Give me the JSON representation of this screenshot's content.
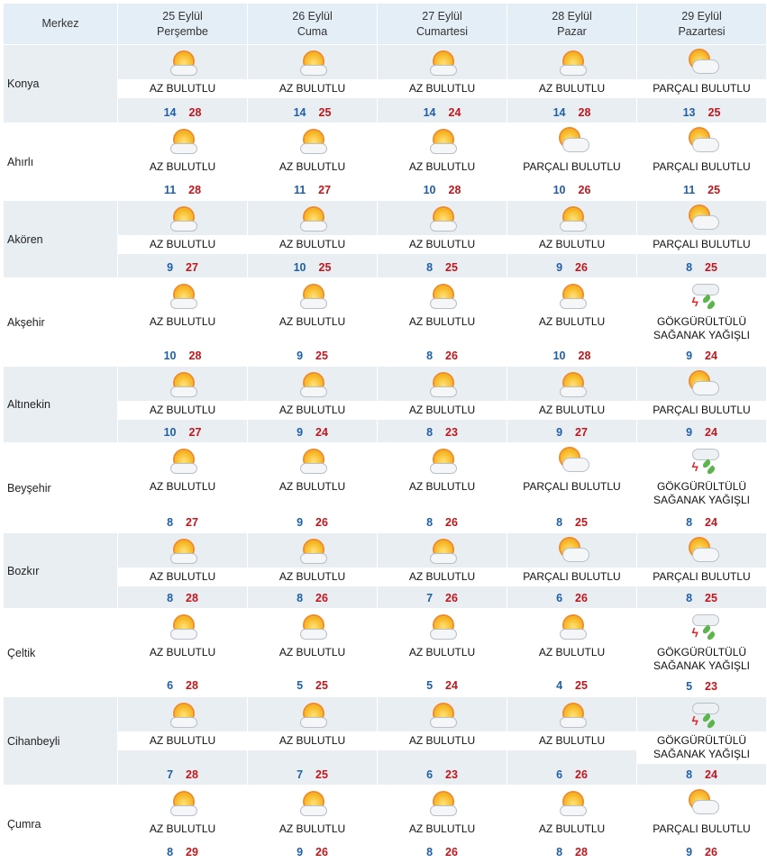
{
  "header": {
    "first": "Merkez",
    "days": [
      {
        "date": "25 Eylül",
        "day": "Perşembe"
      },
      {
        "date": "26 Eylül",
        "day": "Cuma"
      },
      {
        "date": "27 Eylül",
        "day": "Cumartesi"
      },
      {
        "date": "28 Eylül",
        "day": "Pazar"
      },
      {
        "date": "29 Eylül",
        "day": "Pazartesi"
      }
    ]
  },
  "conditions": {
    "az": {
      "label": "AZ BULUTLU",
      "icon": "sun-cloud-icon"
    },
    "pb": {
      "label": "PARÇALI BULUTLU",
      "icon": "partly-cloudy-icon"
    },
    "gs": {
      "label": "GÖKGÜRÜLTÜLÜ SAĞANAK YAĞIŞLI",
      "icon": "thunderstorm-icon"
    }
  },
  "colors": {
    "min": "#1f5fa6",
    "max": "#c0161c",
    "header_bg": "#e4eef7"
  },
  "rows": [
    {
      "city": "Konya",
      "days": [
        [
          "az",
          14,
          28
        ],
        [
          "az",
          14,
          25
        ],
        [
          "az",
          14,
          24
        ],
        [
          "az",
          14,
          28
        ],
        [
          "pb",
          13,
          25
        ]
      ]
    },
    {
      "city": "Ahırlı",
      "days": [
        [
          "az",
          11,
          28
        ],
        [
          "az",
          11,
          27
        ],
        [
          "az",
          10,
          28
        ],
        [
          "pb",
          10,
          26
        ],
        [
          "pb",
          11,
          25
        ]
      ]
    },
    {
      "city": "Akören",
      "days": [
        [
          "az",
          9,
          27
        ],
        [
          "az",
          10,
          25
        ],
        [
          "az",
          8,
          25
        ],
        [
          "az",
          9,
          26
        ],
        [
          "pb",
          8,
          25
        ]
      ]
    },
    {
      "city": "Akşehir",
      "days": [
        [
          "az",
          10,
          28
        ],
        [
          "az",
          9,
          25
        ],
        [
          "az",
          8,
          26
        ],
        [
          "az",
          10,
          28
        ],
        [
          "gs",
          9,
          24
        ]
      ]
    },
    {
      "city": "Altınekin",
      "days": [
        [
          "az",
          10,
          27
        ],
        [
          "az",
          9,
          24
        ],
        [
          "az",
          8,
          23
        ],
        [
          "az",
          9,
          27
        ],
        [
          "pb",
          9,
          24
        ]
      ]
    },
    {
      "city": "Beyşehir",
      "days": [
        [
          "az",
          8,
          27
        ],
        [
          "az",
          9,
          26
        ],
        [
          "az",
          8,
          26
        ],
        [
          "pb",
          8,
          25
        ],
        [
          "gs",
          8,
          24
        ]
      ]
    },
    {
      "city": "Bozkır",
      "days": [
        [
          "az",
          8,
          28
        ],
        [
          "az",
          8,
          26
        ],
        [
          "az",
          7,
          26
        ],
        [
          "pb",
          6,
          26
        ],
        [
          "pb",
          8,
          25
        ]
      ]
    },
    {
      "city": "Çeltik",
      "days": [
        [
          "az",
          6,
          28
        ],
        [
          "az",
          5,
          25
        ],
        [
          "az",
          5,
          24
        ],
        [
          "az",
          4,
          25
        ],
        [
          "gs",
          5,
          23
        ]
      ]
    },
    {
      "city": "Cihanbeyli",
      "days": [
        [
          "az",
          7,
          28
        ],
        [
          "az",
          7,
          25
        ],
        [
          "az",
          6,
          23
        ],
        [
          "az",
          6,
          26
        ],
        [
          "gs",
          8,
          24
        ]
      ]
    },
    {
      "city": "Çumra",
      "days": [
        [
          "az",
          8,
          29
        ],
        [
          "az",
          9,
          26
        ],
        [
          "az",
          8,
          26
        ],
        [
          "az",
          8,
          28
        ],
        [
          "pb",
          9,
          26
        ]
      ]
    }
  ]
}
